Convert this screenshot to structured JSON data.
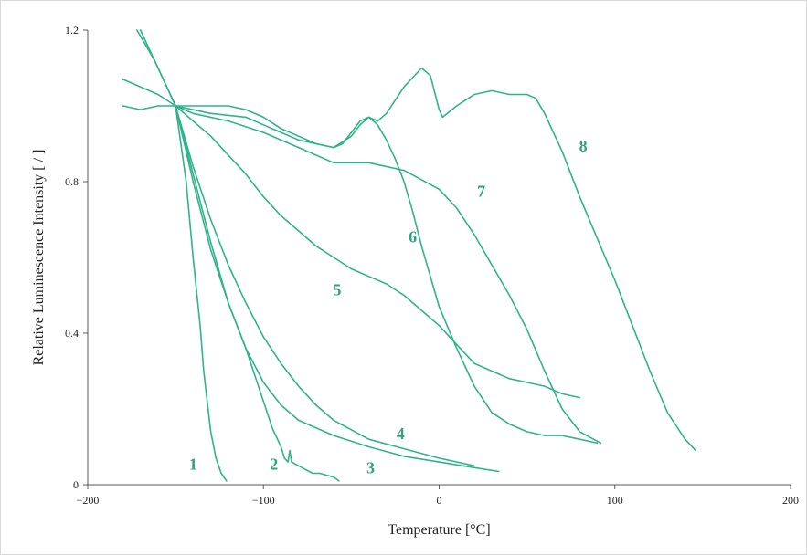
{
  "chart_data": {
    "type": "line",
    "title": "",
    "xlabel": "Temperature [°C]",
    "ylabel": "Relative Luminescence Intensity [ / ]",
    "xlim": [
      -200,
      200
    ],
    "ylim": [
      0,
      1.2
    ],
    "x_ticks": [
      -200,
      -100,
      0,
      100,
      200
    ],
    "x_tick_labels": [
      "−200",
      "−100",
      "0",
      "100",
      "200"
    ],
    "y_ticks": [
      0,
      0.4,
      0.8,
      1.2
    ],
    "y_tick_labels": [
      "0",
      "0.4",
      "0.8",
      "1.2"
    ],
    "grid": false,
    "legend": "none",
    "line_color": "#2fb38a",
    "label_color": "#2ea37d",
    "series": [
      {
        "name": "1",
        "x": [
          -150,
          -144,
          -140,
          -136,
          -134,
          -132,
          -130,
          -127,
          -124,
          -121
        ],
        "y": [
          1.0,
          0.8,
          0.6,
          0.42,
          0.3,
          0.22,
          0.14,
          0.07,
          0.03,
          0.01
        ]
      },
      {
        "name": "2",
        "x": [
          -172,
          -162,
          -150,
          -140,
          -130,
          -120,
          -110,
          -100,
          -95,
          -90,
          -88,
          -86,
          -85,
          -84,
          -80,
          -76,
          -72,
          -68,
          -64,
          -60,
          -57
        ],
        "y": [
          1.2,
          1.12,
          1.0,
          0.8,
          0.62,
          0.48,
          0.36,
          0.22,
          0.15,
          0.1,
          0.07,
          0.06,
          0.09,
          0.06,
          0.05,
          0.04,
          0.03,
          0.03,
          0.025,
          0.02,
          0.01
        ]
      },
      {
        "name": "3",
        "x": [
          -150,
          -140,
          -130,
          -120,
          -110,
          -100,
          -90,
          -80,
          -60,
          -40,
          -20,
          0,
          20,
          34
        ],
        "y": [
          1.0,
          0.82,
          0.64,
          0.48,
          0.36,
          0.27,
          0.21,
          0.17,
          0.13,
          0.1,
          0.075,
          0.06,
          0.045,
          0.035
        ]
      },
      {
        "name": "4",
        "x": [
          -150,
          -140,
          -130,
          -120,
          -110,
          -100,
          -90,
          -80,
          -70,
          -60,
          -40,
          -20,
          0,
          20
        ],
        "y": [
          1.0,
          0.84,
          0.7,
          0.58,
          0.48,
          0.39,
          0.32,
          0.26,
          0.21,
          0.17,
          0.12,
          0.095,
          0.07,
          0.05
        ]
      },
      {
        "name": "5",
        "x": [
          -150,
          -140,
          -130,
          -120,
          -110,
          -100,
          -90,
          -80,
          -70,
          -60,
          -50,
          -40,
          -30,
          -20,
          -10,
          0,
          10,
          20,
          30,
          40,
          50,
          60,
          70,
          80
        ],
        "y": [
          1.0,
          0.96,
          0.92,
          0.87,
          0.82,
          0.76,
          0.71,
          0.67,
          0.63,
          0.6,
          0.57,
          0.55,
          0.53,
          0.5,
          0.46,
          0.42,
          0.37,
          0.32,
          0.3,
          0.28,
          0.27,
          0.26,
          0.24,
          0.23
        ]
      },
      {
        "name": "6",
        "x": [
          -180,
          -170,
          -160,
          -150,
          -130,
          -120,
          -110,
          -100,
          -90,
          -80,
          -70,
          -60,
          -55,
          -50,
          -45,
          -40,
          -35,
          -30,
          -25,
          -20,
          -15,
          -10,
          -5,
          0,
          10,
          20,
          30,
          40,
          50,
          60,
          70,
          80,
          90
        ],
        "y": [
          1.0,
          0.99,
          1.0,
          1.0,
          1.0,
          1.0,
          0.99,
          0.97,
          0.94,
          0.92,
          0.9,
          0.89,
          0.9,
          0.93,
          0.96,
          0.97,
          0.95,
          0.91,
          0.86,
          0.8,
          0.72,
          0.63,
          0.55,
          0.47,
          0.36,
          0.26,
          0.19,
          0.16,
          0.14,
          0.13,
          0.13,
          0.12,
          0.11
        ]
      },
      {
        "name": "7",
        "x": [
          -180,
          -160,
          -150,
          -140,
          -120,
          -100,
          -80,
          -60,
          -40,
          -20,
          0,
          10,
          20,
          30,
          40,
          50,
          60,
          70,
          80,
          92
        ],
        "y": [
          1.07,
          1.03,
          1.0,
          0.98,
          0.96,
          0.93,
          0.89,
          0.85,
          0.85,
          0.83,
          0.78,
          0.73,
          0.66,
          0.58,
          0.5,
          0.41,
          0.3,
          0.2,
          0.14,
          0.11
        ]
      },
      {
        "name": "8",
        "x": [
          -170,
          -160,
          -150,
          -130,
          -110,
          -100,
          -90,
          -80,
          -70,
          -60,
          -50,
          -45,
          -40,
          -35,
          -30,
          -20,
          -10,
          -5,
          0,
          2,
          10,
          20,
          30,
          40,
          50,
          55,
          60,
          70,
          80,
          90,
          100,
          110,
          120,
          130,
          140,
          146
        ],
        "y": [
          1.2,
          1.1,
          1.0,
          0.98,
          0.97,
          0.95,
          0.93,
          0.91,
          0.9,
          0.89,
          0.92,
          0.95,
          0.97,
          0.96,
          0.98,
          1.05,
          1.1,
          1.08,
          0.99,
          0.97,
          1.0,
          1.03,
          1.04,
          1.03,
          1.03,
          1.02,
          0.98,
          0.88,
          0.76,
          0.65,
          0.54,
          0.42,
          0.3,
          0.19,
          0.12,
          0.09
        ]
      }
    ],
    "annotations": [
      {
        "text": "1",
        "x": -140,
        "y": 0.04
      },
      {
        "text": "2",
        "x": -94,
        "y": 0.04
      },
      {
        "text": "3",
        "x": -39,
        "y": 0.03
      },
      {
        "text": "4",
        "x": -22,
        "y": 0.12
      },
      {
        "text": "5",
        "x": -58,
        "y": 0.5
      },
      {
        "text": "6",
        "x": -15,
        "y": 0.64
      },
      {
        "text": "7",
        "x": 24,
        "y": 0.76
      },
      {
        "text": "8",
        "x": 82,
        "y": 0.88
      }
    ]
  }
}
